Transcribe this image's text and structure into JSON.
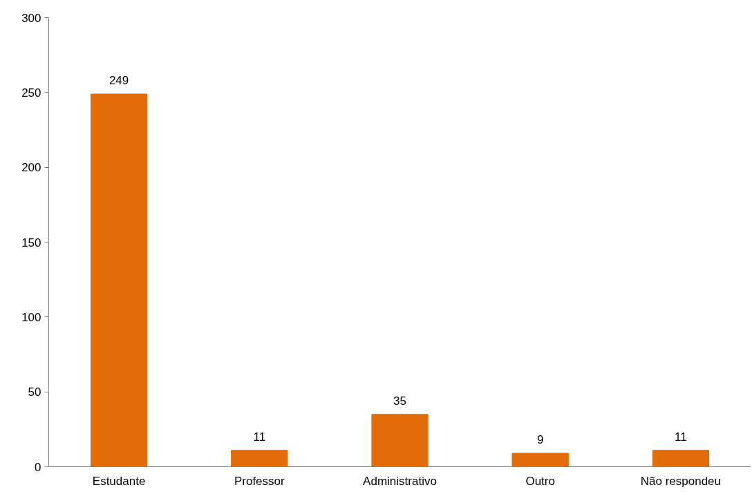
{
  "chart_data": {
    "type": "bar",
    "categories": [
      "Estudante",
      "Professor",
      "Administrativo",
      "Outro",
      "Não respondeu"
    ],
    "values": [
      249,
      11,
      35,
      9,
      11
    ],
    "color": "#e36c0a",
    "ylim": [
      0,
      300
    ],
    "yticks": [
      0,
      50,
      100,
      150,
      200,
      250,
      300
    ],
    "grid": false,
    "data_labels": true
  }
}
